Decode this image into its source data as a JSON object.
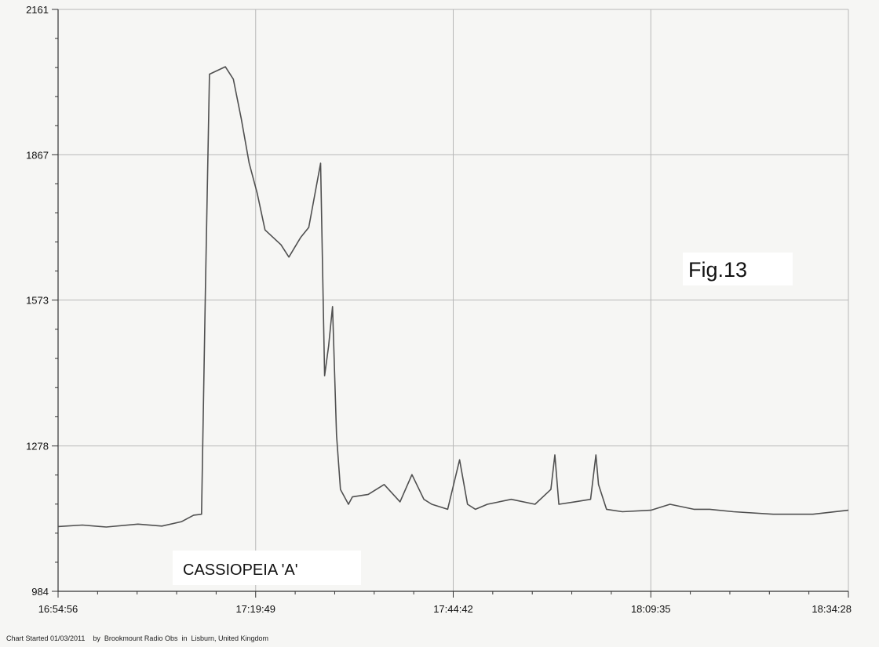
{
  "chart_data": {
    "type": "line",
    "title": "",
    "xlabel": "",
    "ylabel": "",
    "x_tick_labels": [
      "16:54:56",
      "17:19:49",
      "17:44:42",
      "18:09:35",
      "18:34:28"
    ],
    "y_tick_labels": [
      "984",
      "1278",
      "1573",
      "1867",
      "2161"
    ],
    "ylim": [
      984,
      2161
    ],
    "xlim": [
      "16:54:56",
      "18:34:28"
    ],
    "grid": true,
    "annotations": {
      "figure_label": "Fig.13",
      "source_label": "CASSIOPEIA 'A'"
    },
    "series": [
      {
        "x": [
          "16:54:56",
          "16:58:00",
          "17:01:00",
          "17:05:00",
          "17:08:00",
          "17:10:30",
          "17:12:00",
          "17:13:00",
          "17:13:30",
          "17:14:00",
          "17:16:00",
          "17:17:00",
          "17:18:00",
          "17:19:00",
          "17:20:00",
          "17:21:00",
          "17:23:00",
          "17:24:00",
          "17:25:30",
          "17:26:30",
          "17:28:00",
          "17:28:30",
          "17:29:00",
          "17:29:30",
          "17:30:00",
          "17:30:30",
          "17:31:30",
          "17:32:00",
          "17:34:00",
          "17:36:00",
          "17:38:00",
          "17:39:30",
          "17:41:00",
          "17:42:00",
          "17:44:00",
          "17:45:30",
          "17:46:30",
          "17:47:30",
          "17:49:00",
          "17:52:00",
          "17:55:00",
          "17:57:00",
          "17:57:30",
          "17:58:00",
          "18:00:00",
          "18:02:00",
          "18:02:40",
          "18:03:00",
          "18:04:00",
          "18:06:00",
          "18:09:35",
          "18:12:00",
          "18:15:00",
          "18:17:00",
          "18:20:00",
          "18:25:00",
          "18:30:00",
          "18:34:28"
        ],
        "y": [
          1115,
          1118,
          1114,
          1120,
          1116,
          1125,
          1138,
          1140,
          1600,
          2030,
          2045,
          2020,
          1940,
          1850,
          1790,
          1715,
          1685,
          1660,
          1700,
          1720,
          1850,
          1420,
          1480,
          1560,
          1300,
          1190,
          1160,
          1175,
          1180,
          1200,
          1165,
          1220,
          1170,
          1160,
          1150,
          1250,
          1160,
          1150,
          1160,
          1170,
          1160,
          1190,
          1260,
          1160,
          1165,
          1170,
          1260,
          1200,
          1150,
          1145,
          1148,
          1160,
          1150,
          1150,
          1145,
          1140,
          1140,
          1148
        ]
      }
    ]
  },
  "footer": {
    "note": "Chart Started 01/03/2011    by  Brookmount Radio Obs  in  Lisburn, United Kingdom"
  },
  "colors": {
    "line": "#505050",
    "grid": "#b8b8b8",
    "axis": "#333333",
    "text": "#111111",
    "background": "#f6f6f4",
    "label_box": "#ffffff"
  }
}
